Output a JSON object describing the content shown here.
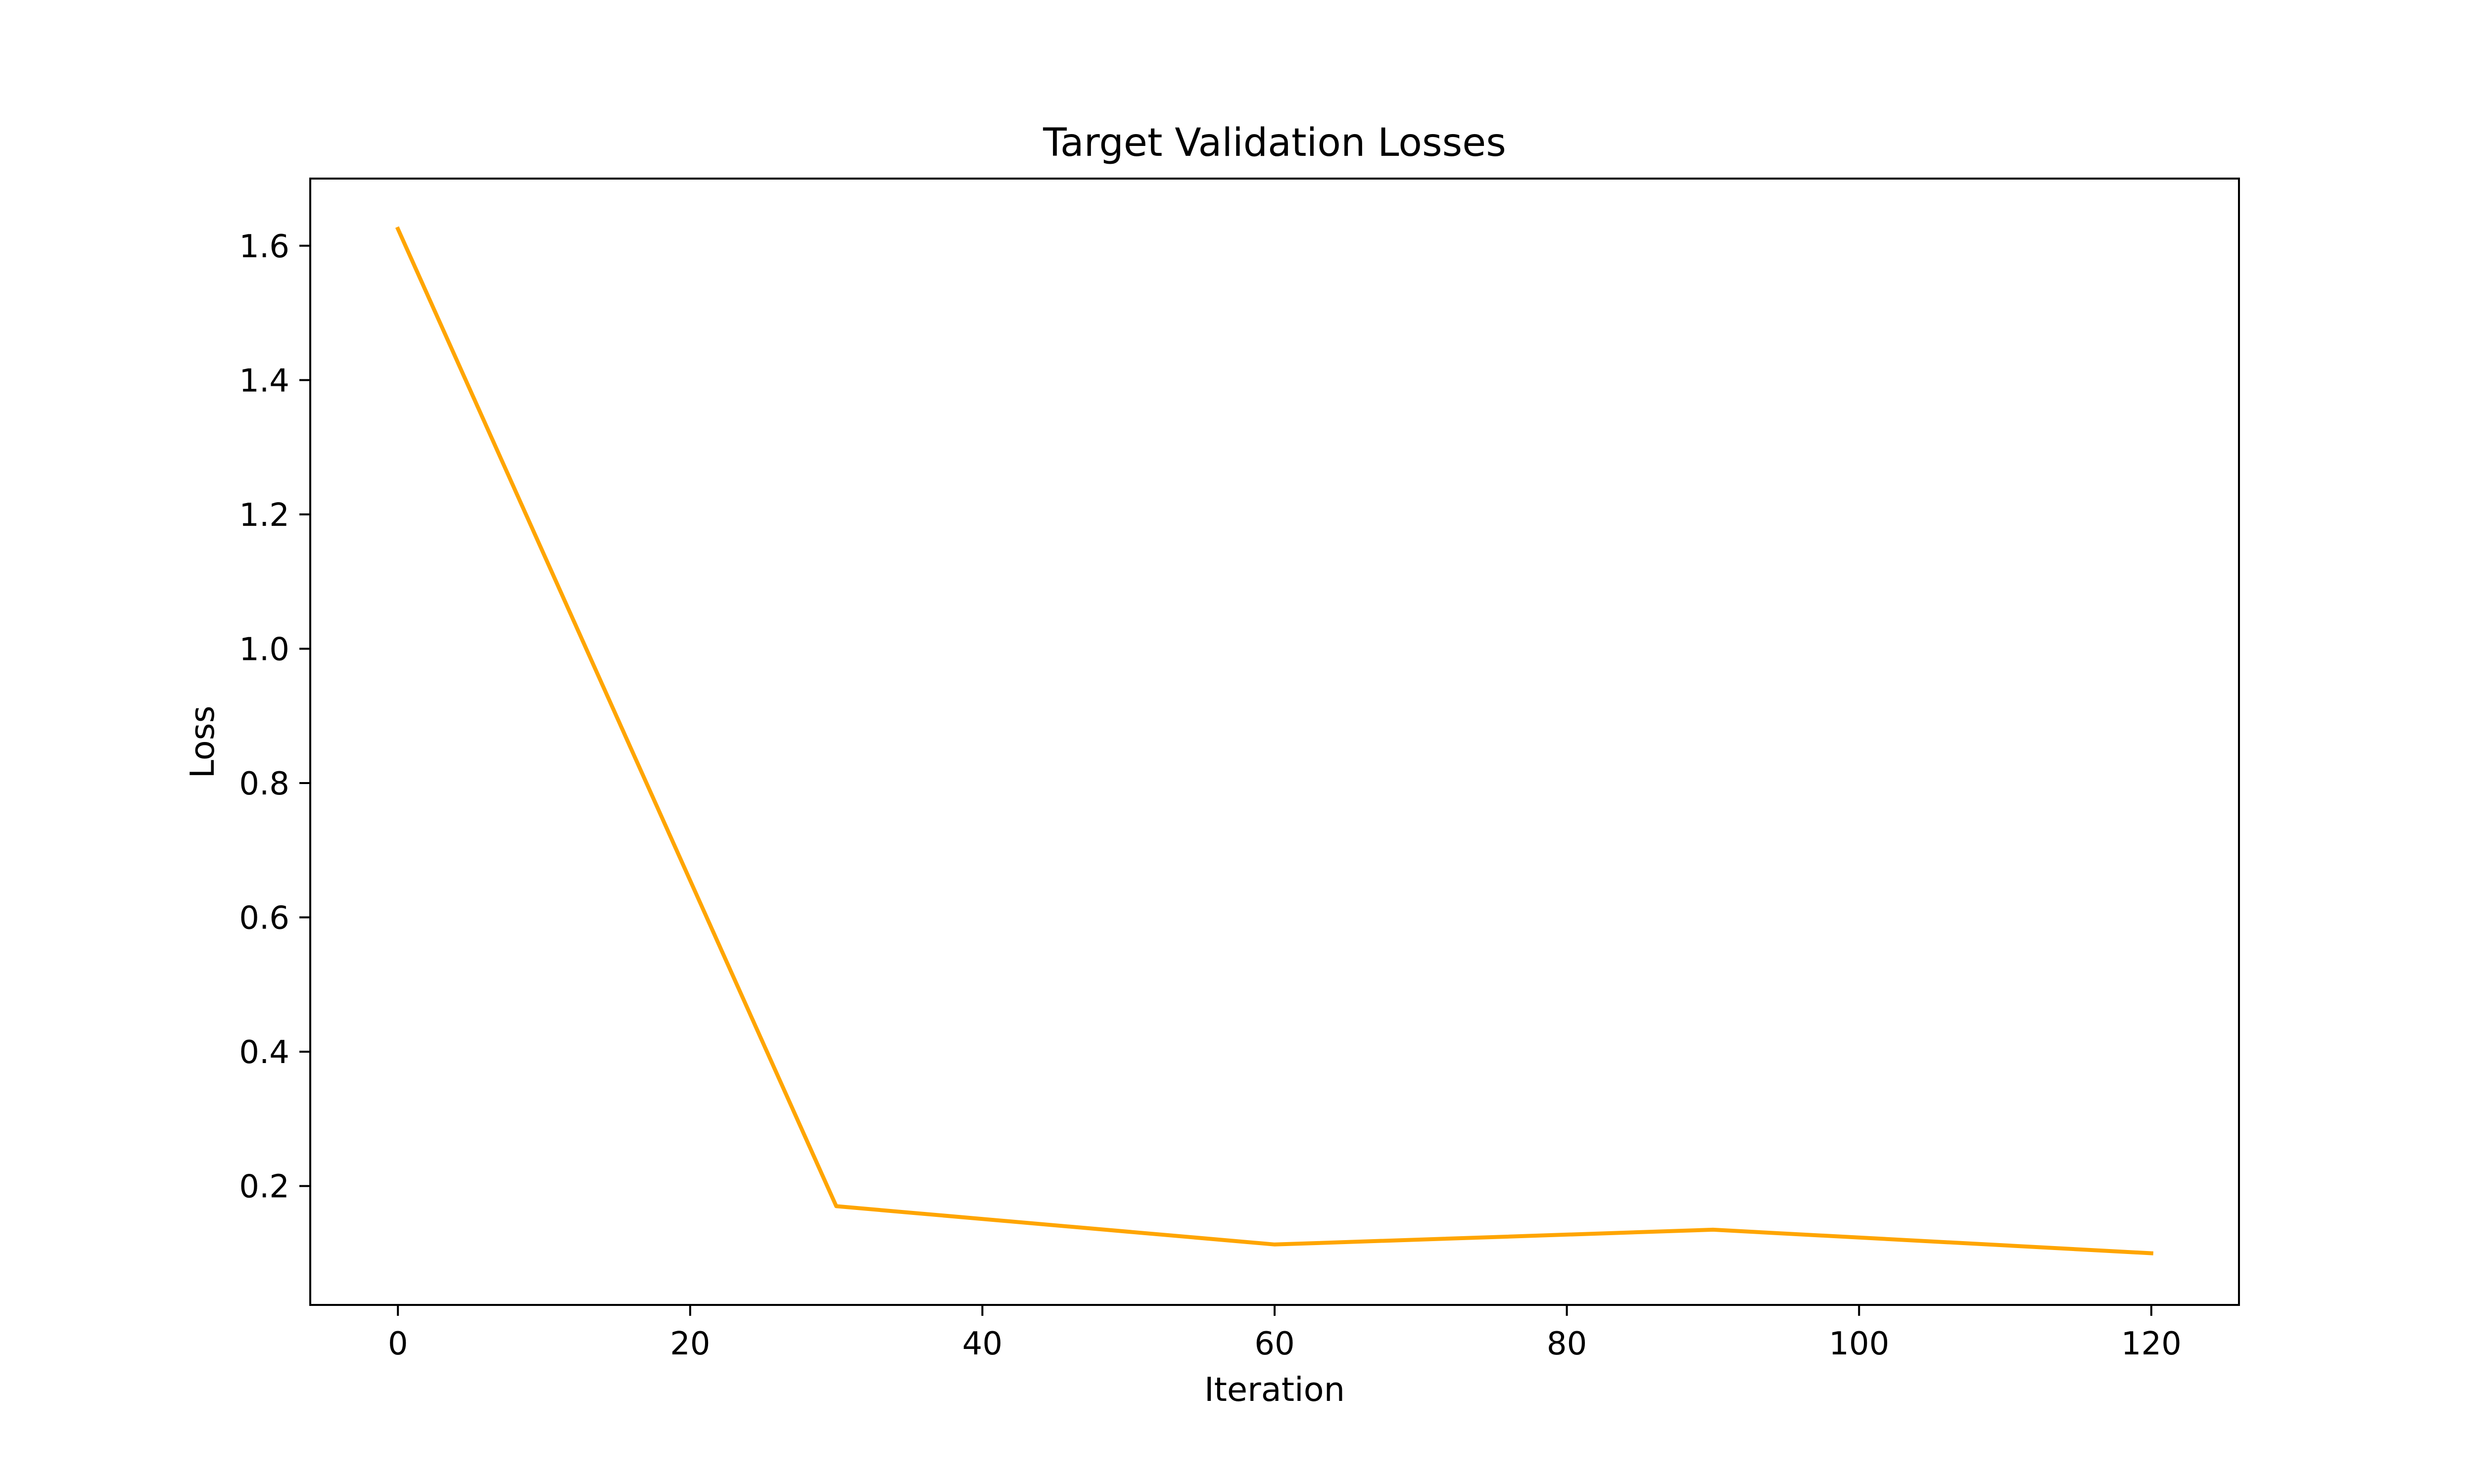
{
  "chart_data": {
    "type": "line",
    "title": "Target Validation Losses",
    "xlabel": "Iteration",
    "ylabel": "Loss",
    "xlim": [
      -6,
      126
    ],
    "ylim": [
      0.023,
      1.7
    ],
    "xticks": [
      0,
      20,
      40,
      60,
      80,
      100,
      120
    ],
    "yticks": [
      0.2,
      0.4,
      0.6,
      0.8,
      1.0,
      1.2,
      1.4,
      1.6
    ],
    "ytick_labels": [
      "0.2",
      "0.4",
      "0.6",
      "0.8",
      "1.0",
      "1.2",
      "1.4",
      "1.6"
    ],
    "grid": false,
    "series": [
      {
        "color": "#FFA500",
        "x": [
          0,
          30,
          60,
          90,
          120
        ],
        "y": [
          1.625,
          0.17,
          0.113,
          0.135,
          0.1
        ]
      }
    ]
  }
}
